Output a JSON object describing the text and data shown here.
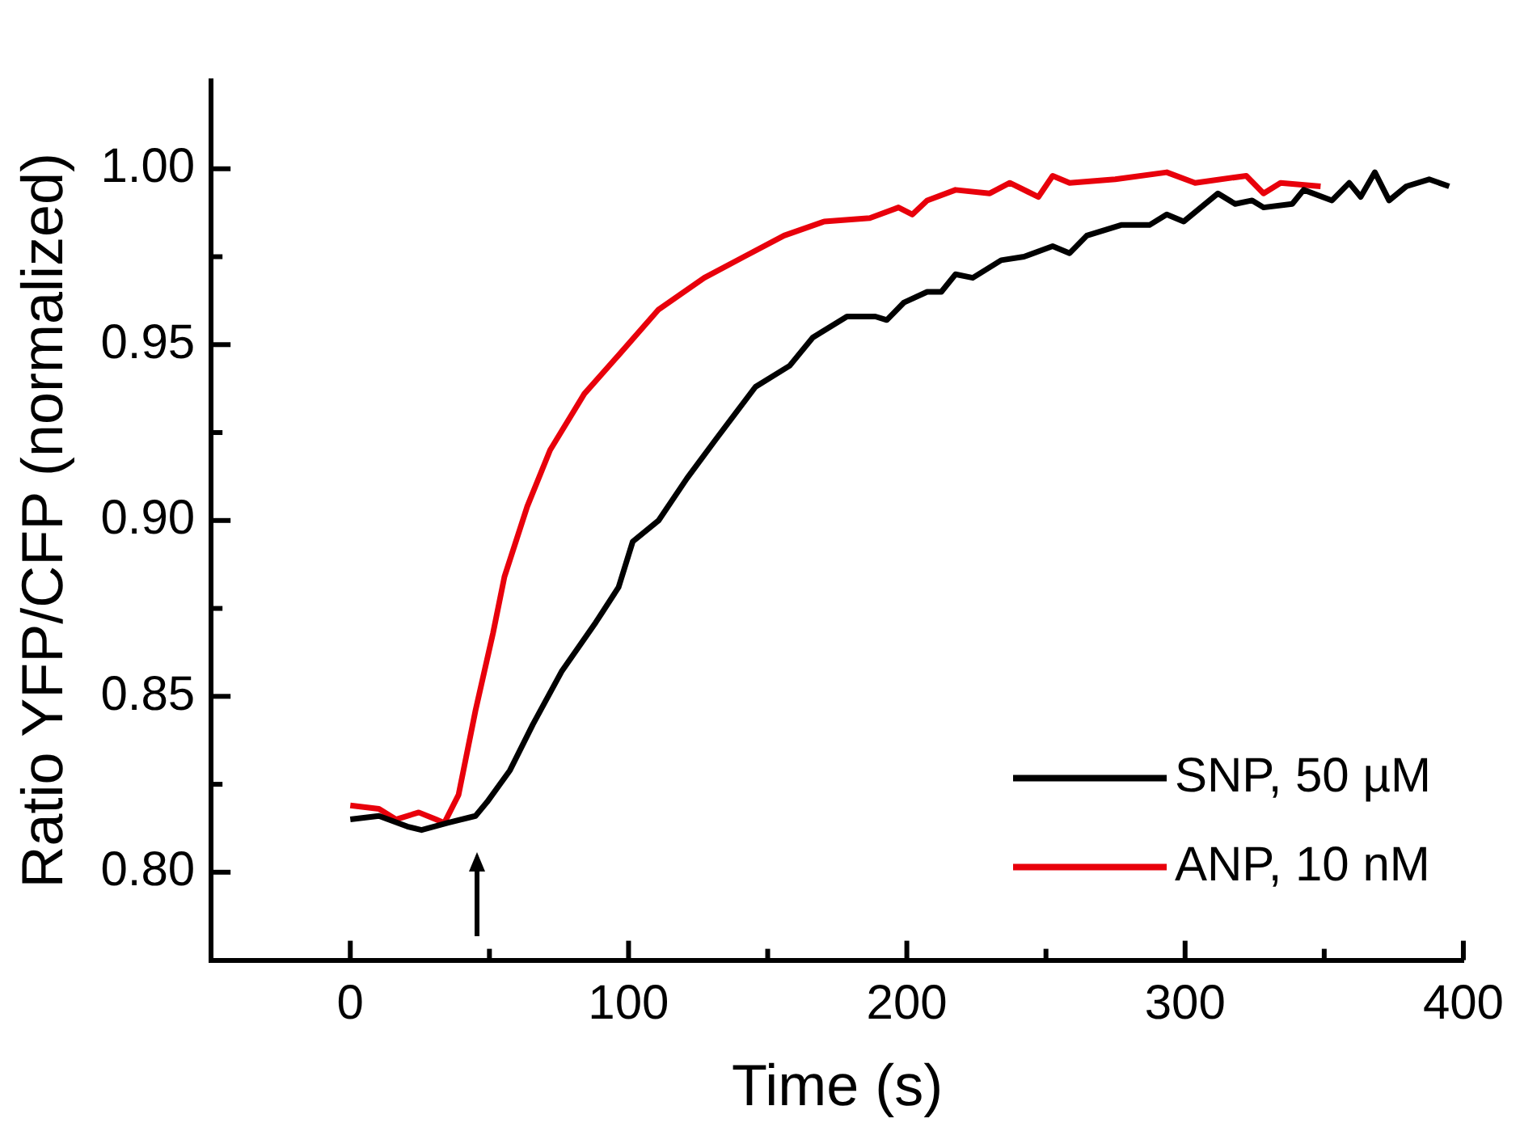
{
  "chart_data": {
    "type": "line",
    "xlabel": "Time (s)",
    "ylabel": "Ratio YFP/CFP (normalized)",
    "xlim": [
      -50,
      400
    ],
    "ylim": [
      0.775,
      1.025
    ],
    "xticks": [
      0,
      {
        "value": 50,
        "label": null
      },
      100,
      {
        "value": 150,
        "label": null
      },
      200,
      {
        "value": 250,
        "label": null
      },
      300,
      {
        "value": 350,
        "label": null
      },
      400
    ],
    "yticks": [
      {
        "value": 0.8,
        "label": "0.80"
      },
      {
        "value": 0.825,
        "label": null
      },
      {
        "value": 0.85,
        "label": "0.85"
      },
      {
        "value": 0.875,
        "label": null
      },
      {
        "value": 0.9,
        "label": "0.90"
      },
      {
        "value": 0.925,
        "label": null
      },
      {
        "value": 0.95,
        "label": "0.95"
      },
      {
        "value": 0.975,
        "label": null
      },
      {
        "value": 1,
        "label": "1.00"
      }
    ],
    "legend": "bottom right",
    "marker": "none",
    "line_style": "solid",
    "grid": false,
    "series": [
      {
        "name": "SNP, 50 µM",
        "color": "#000000",
        "x": [
          0,
          10.3,
          20.5,
          25.6,
          34.9,
          45,
          49.2,
          57.4,
          65.6,
          75.9,
          88.2,
          96.4,
          101.5,
          110.8,
          121,
          131.3,
          145.6,
          157.9,
          166.2,
          178.5,
          188.7,
          192.8,
          199,
          207.3,
          212.4,
          217.5,
          223.7,
          233.9,
          242.1,
          252.4,
          258.5,
          264.7,
          277,
          287.2,
          293.4,
          299.5,
          311.8,
          318,
          324.1,
          328.2,
          338.5,
          342.6,
          352.8,
          359,
          363.1,
          368.2,
          373.3,
          379.5,
          387.7,
          394.9
        ],
        "values": [
          0.815,
          0.816,
          0.813,
          0.812,
          0.814,
          0.816,
          0.82,
          0.829,
          0.842,
          0.857,
          0.871,
          0.881,
          0.894,
          0.9,
          0.912,
          0.923,
          0.938,
          0.944,
          0.952,
          0.958,
          0.958,
          0.957,
          0.962,
          0.965,
          0.965,
          0.97,
          0.969,
          0.974,
          0.975,
          0.978,
          0.976,
          0.981,
          0.984,
          0.984,
          0.987,
          0.985,
          0.993,
          0.99,
          0.991,
          0.989,
          0.99,
          0.994,
          0.991,
          0.996,
          0.992,
          0.999,
          0.991,
          0.995,
          0.997,
          0.995
        ]
      },
      {
        "name": "ANP, 10 nM",
        "color": "#e8000b",
        "x": [
          0,
          10.3,
          16.4,
          24.6,
          30.8,
          33.8,
          38.9,
          45,
          51.3,
          55.4,
          63.6,
          71.8,
          84.1,
          96.4,
          110.8,
          127.2,
          141.5,
          155.9,
          170.3,
          186.7,
          197,
          202,
          207.3,
          217.5,
          229.8,
          237,
          247.3,
          252.4,
          258.5,
          274.9,
          293.4,
          303.6,
          322,
          328.2,
          334.3,
          348.7
        ],
        "values": [
          0.819,
          0.818,
          0.815,
          0.817,
          0.815,
          0.814,
          0.822,
          0.846,
          0.868,
          0.884,
          0.904,
          0.92,
          0.936,
          0.947,
          0.96,
          0.969,
          0.975,
          0.981,
          0.985,
          0.986,
          0.989,
          0.987,
          0.991,
          0.994,
          0.993,
          0.996,
          0.992,
          0.998,
          0.996,
          0.997,
          0.999,
          0.996,
          0.998,
          0.993,
          0.996,
          0.995
        ]
      }
    ]
  }
}
